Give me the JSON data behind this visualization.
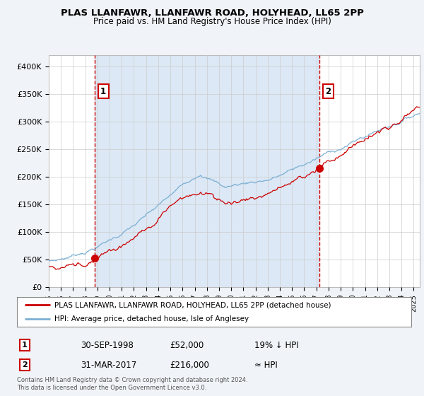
{
  "title1": "PLAS LLANFAWR, LLANFAWR ROAD, HOLYHEAD, LL65 2PP",
  "title2": "Price paid vs. HM Land Registry's House Price Index (HPI)",
  "ylabel_ticks": [
    "£0",
    "£50K",
    "£100K",
    "£150K",
    "£200K",
    "£250K",
    "£300K",
    "£350K",
    "£400K"
  ],
  "ytick_values": [
    0,
    50000,
    100000,
    150000,
    200000,
    250000,
    300000,
    350000,
    400000
  ],
  "ylim": [
    0,
    420000
  ],
  "xlim_start": 1995.0,
  "xlim_end": 2025.5,
  "line1_color": "#cc0000",
  "line2_color": "#7bafd4",
  "line1_label": "PLAS LLANFAWR, LLANFAWR ROAD, HOLYHEAD, LL65 2PP (detached house)",
  "line2_label": "HPI: Average price, detached house, Isle of Anglesey",
  "vline1_x": 1998.75,
  "vline2_x": 2017.25,
  "point1_x": 1998.75,
  "point1_y": 52000,
  "point2_x": 2017.25,
  "point2_y": 216000,
  "marker1_label": "1",
  "marker2_label": "2",
  "info1_num": "1",
  "info1_date": "30-SEP-1998",
  "info1_price": "£52,000",
  "info1_hpi": "19% ↓ HPI",
  "info2_num": "2",
  "info2_date": "31-MAR-2017",
  "info2_price": "£216,000",
  "info2_hpi": "≈ HPI",
  "footnote": "Contains HM Land Registry data © Crown copyright and database right 2024.\nThis data is licensed under the Open Government Licence v3.0.",
  "bg_color": "#f0f4f8",
  "plot_bg_color": "#ffffff",
  "shade_bg_color": "#dce8f5",
  "grid_color": "#cccccc",
  "vline_color": "#cc0000"
}
